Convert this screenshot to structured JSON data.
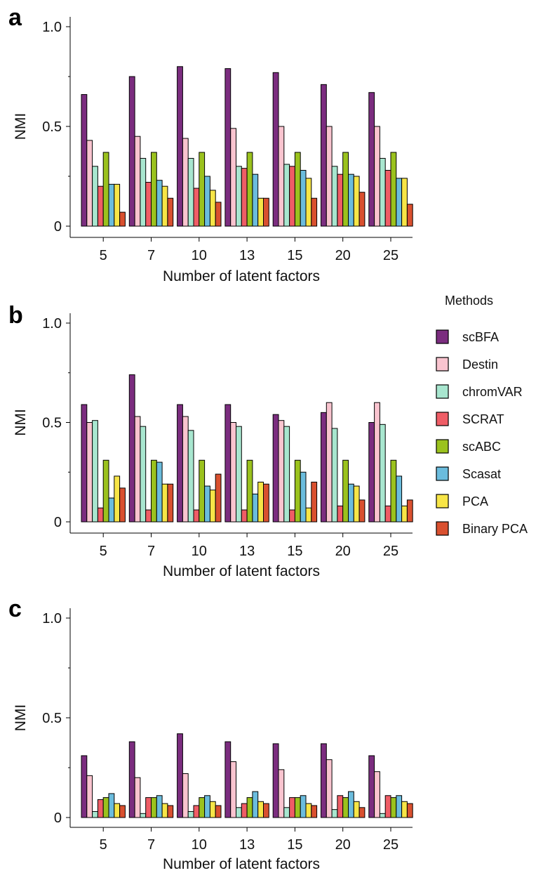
{
  "legend": {
    "title": "Methods"
  },
  "methods": [
    {
      "name": "scBFA",
      "color": "#7B2D7F"
    },
    {
      "name": "Destin",
      "color": "#F9C4CF"
    },
    {
      "name": "chromVAR",
      "color": "#A8E6CF"
    },
    {
      "name": "SCRAT",
      "color": "#EF5D66"
    },
    {
      "name": "scABC",
      "color": "#9BC21E"
    },
    {
      "name": "Scasat",
      "color": "#6BBCDD"
    },
    {
      "name": "PCA",
      "color": "#F7E547"
    },
    {
      "name": "Binary PCA",
      "color": "#D9502F"
    }
  ],
  "chart_data": [
    {
      "type": "bar",
      "panel": "a",
      "categories": [
        "5",
        "7",
        "10",
        "13",
        "15",
        "20",
        "25"
      ],
      "xlabel": "Number of latent factors",
      "ylabel": "NMI",
      "ylim": [
        0,
        1.05
      ],
      "yticks": [
        "0",
        "0.5",
        "1.0"
      ],
      "series": [
        {
          "name": "scBFA",
          "values": [
            0.66,
            0.75,
            0.8,
            0.79,
            0.77,
            0.71,
            0.67
          ]
        },
        {
          "name": "Destin",
          "values": [
            0.43,
            0.45,
            0.44,
            0.49,
            0.5,
            0.5,
            0.5
          ]
        },
        {
          "name": "chromVAR",
          "values": [
            0.3,
            0.34,
            0.34,
            0.3,
            0.31,
            0.3,
            0.34
          ]
        },
        {
          "name": "SCRAT",
          "values": [
            0.2,
            0.22,
            0.19,
            0.29,
            0.3,
            0.26,
            0.28
          ]
        },
        {
          "name": "scABC",
          "values": [
            0.37,
            0.37,
            0.37,
            0.37,
            0.37,
            0.37,
            0.37
          ]
        },
        {
          "name": "Scasat",
          "values": [
            0.21,
            0.23,
            0.25,
            0.26,
            0.28,
            0.26,
            0.24
          ]
        },
        {
          "name": "PCA",
          "values": [
            0.21,
            0.2,
            0.18,
            0.14,
            0.24,
            0.25,
            0.24
          ]
        },
        {
          "name": "Binary PCA",
          "values": [
            0.07,
            0.14,
            0.12,
            0.14,
            0.14,
            0.17,
            0.11
          ]
        }
      ]
    },
    {
      "type": "bar",
      "panel": "b",
      "categories": [
        "5",
        "7",
        "10",
        "13",
        "15",
        "20",
        "25"
      ],
      "xlabel": "Number of latent factors",
      "ylabel": "NMI",
      "ylim": [
        0,
        1.05
      ],
      "yticks": [
        "0",
        "0.5",
        "1.0"
      ],
      "series": [
        {
          "name": "scBFA",
          "values": [
            0.59,
            0.74,
            0.59,
            0.59,
            0.54,
            0.55,
            0.5
          ]
        },
        {
          "name": "Destin",
          "values": [
            0.5,
            0.53,
            0.53,
            0.5,
            0.51,
            0.6,
            0.6
          ]
        },
        {
          "name": "chromVAR",
          "values": [
            0.51,
            0.48,
            0.46,
            0.48,
            0.48,
            0.47,
            0.49
          ]
        },
        {
          "name": "SCRAT",
          "values": [
            0.07,
            0.06,
            0.06,
            0.06,
            0.06,
            0.08,
            0.08
          ]
        },
        {
          "name": "scABC",
          "values": [
            0.31,
            0.31,
            0.31,
            0.31,
            0.31,
            0.31,
            0.31
          ]
        },
        {
          "name": "Scasat",
          "values": [
            0.12,
            0.3,
            0.18,
            0.14,
            0.25,
            0.19,
            0.23
          ]
        },
        {
          "name": "PCA",
          "values": [
            0.23,
            0.19,
            0.16,
            0.2,
            0.07,
            0.18,
            0.08
          ]
        },
        {
          "name": "Binary PCA",
          "values": [
            0.17,
            0.19,
            0.24,
            0.19,
            0.2,
            0.11,
            0.11
          ]
        }
      ]
    },
    {
      "type": "bar",
      "panel": "c",
      "categories": [
        "5",
        "7",
        "10",
        "13",
        "15",
        "20",
        "25"
      ],
      "xlabel": "Number of latent factors",
      "ylabel": "NMI",
      "ylim": [
        0,
        1.05
      ],
      "yticks": [
        "0",
        "0.5",
        "1.0"
      ],
      "series": [
        {
          "name": "scBFA",
          "values": [
            0.31,
            0.38,
            0.42,
            0.38,
            0.37,
            0.37,
            0.31
          ]
        },
        {
          "name": "Destin",
          "values": [
            0.21,
            0.2,
            0.22,
            0.28,
            0.24,
            0.29,
            0.23
          ]
        },
        {
          "name": "chromVAR",
          "values": [
            0.03,
            0.02,
            0.03,
            0.05,
            0.05,
            0.04,
            0.02
          ]
        },
        {
          "name": "SCRAT",
          "values": [
            0.09,
            0.1,
            0.06,
            0.07,
            0.1,
            0.11,
            0.11
          ]
        },
        {
          "name": "scABC",
          "values": [
            0.1,
            0.1,
            0.1,
            0.1,
            0.1,
            0.1,
            0.1
          ]
        },
        {
          "name": "Scasat",
          "values": [
            0.12,
            0.11,
            0.11,
            0.13,
            0.11,
            0.13,
            0.11
          ]
        },
        {
          "name": "PCA",
          "values": [
            0.07,
            0.07,
            0.08,
            0.08,
            0.07,
            0.08,
            0.08
          ]
        },
        {
          "name": "Binary PCA",
          "values": [
            0.06,
            0.06,
            0.06,
            0.07,
            0.06,
            0.05,
            0.07
          ]
        }
      ]
    }
  ]
}
